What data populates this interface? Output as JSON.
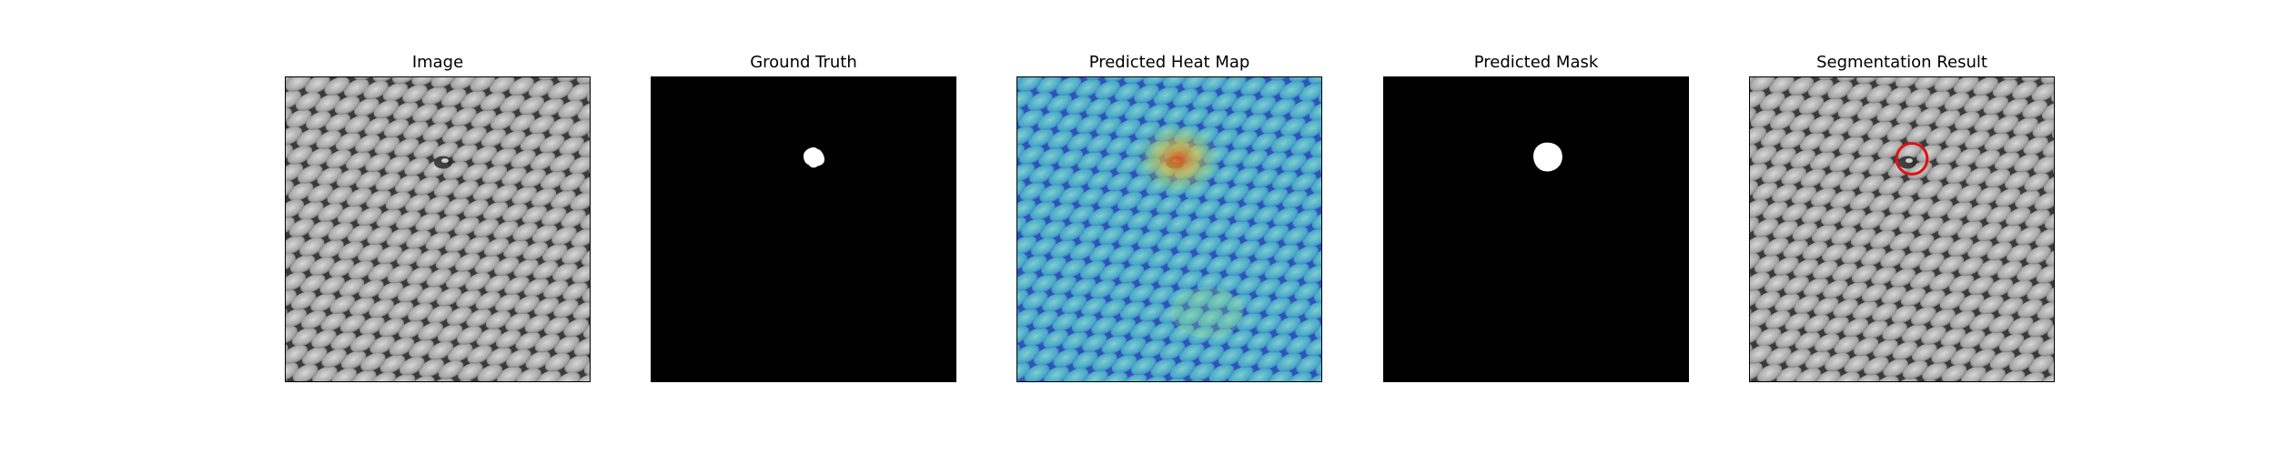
{
  "figure": {
    "panels": [
      {
        "title": "Image",
        "kind": "texture"
      },
      {
        "title": "Ground Truth",
        "kind": "ground-truth"
      },
      {
        "title": "Predicted Heat Map",
        "kind": "heatmap"
      },
      {
        "title": "Predicted Mask",
        "kind": "mask"
      },
      {
        "title": "Segmentation Result",
        "kind": "result"
      }
    ]
  },
  "colors": {
    "background": "#000000",
    "mask": "#ffffff",
    "outline": "#e01010",
    "heat_hot": "#d9531e",
    "heat_cool": "#3c6fd8",
    "heat_mid": "#5ec6c8"
  }
}
